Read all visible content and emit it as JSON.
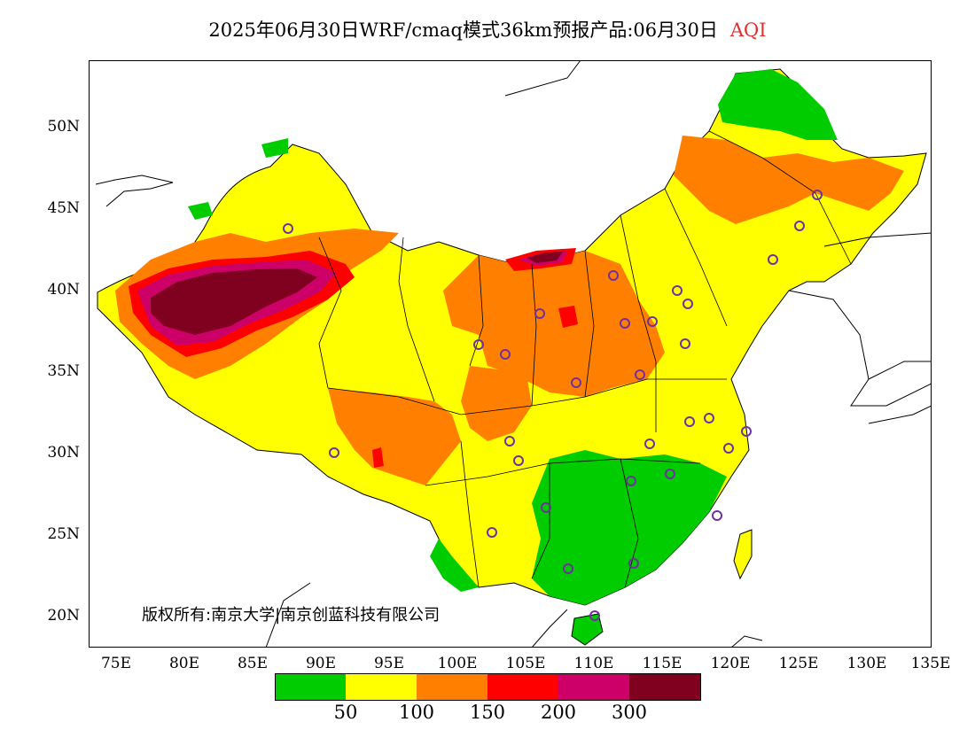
{
  "title": {
    "text": "2025年06月30日WRF/cmaq模式36km预报产品:06月30日",
    "variable": "AQI",
    "variable_color": "#e03030"
  },
  "y_ticks": [
    "50N",
    "45N",
    "40N",
    "35N",
    "30N",
    "25N",
    "20N"
  ],
  "x_ticks": [
    "75E",
    "80E",
    "85E",
    "90E",
    "95E",
    "100E",
    "105E",
    "110E",
    "115E",
    "120E",
    "125E",
    "130E",
    "135E"
  ],
  "legend": {
    "colors": [
      "#00cc00",
      "#ffff00",
      "#ff8000",
      "#ff0000",
      "#cc0066",
      "#800020"
    ],
    "values": [
      "50",
      "100",
      "150",
      "200",
      "300"
    ]
  },
  "copyright": "版权所有:南京大学|南京创蓝科技有限公司",
  "station_marker_color": "#7030a0"
}
